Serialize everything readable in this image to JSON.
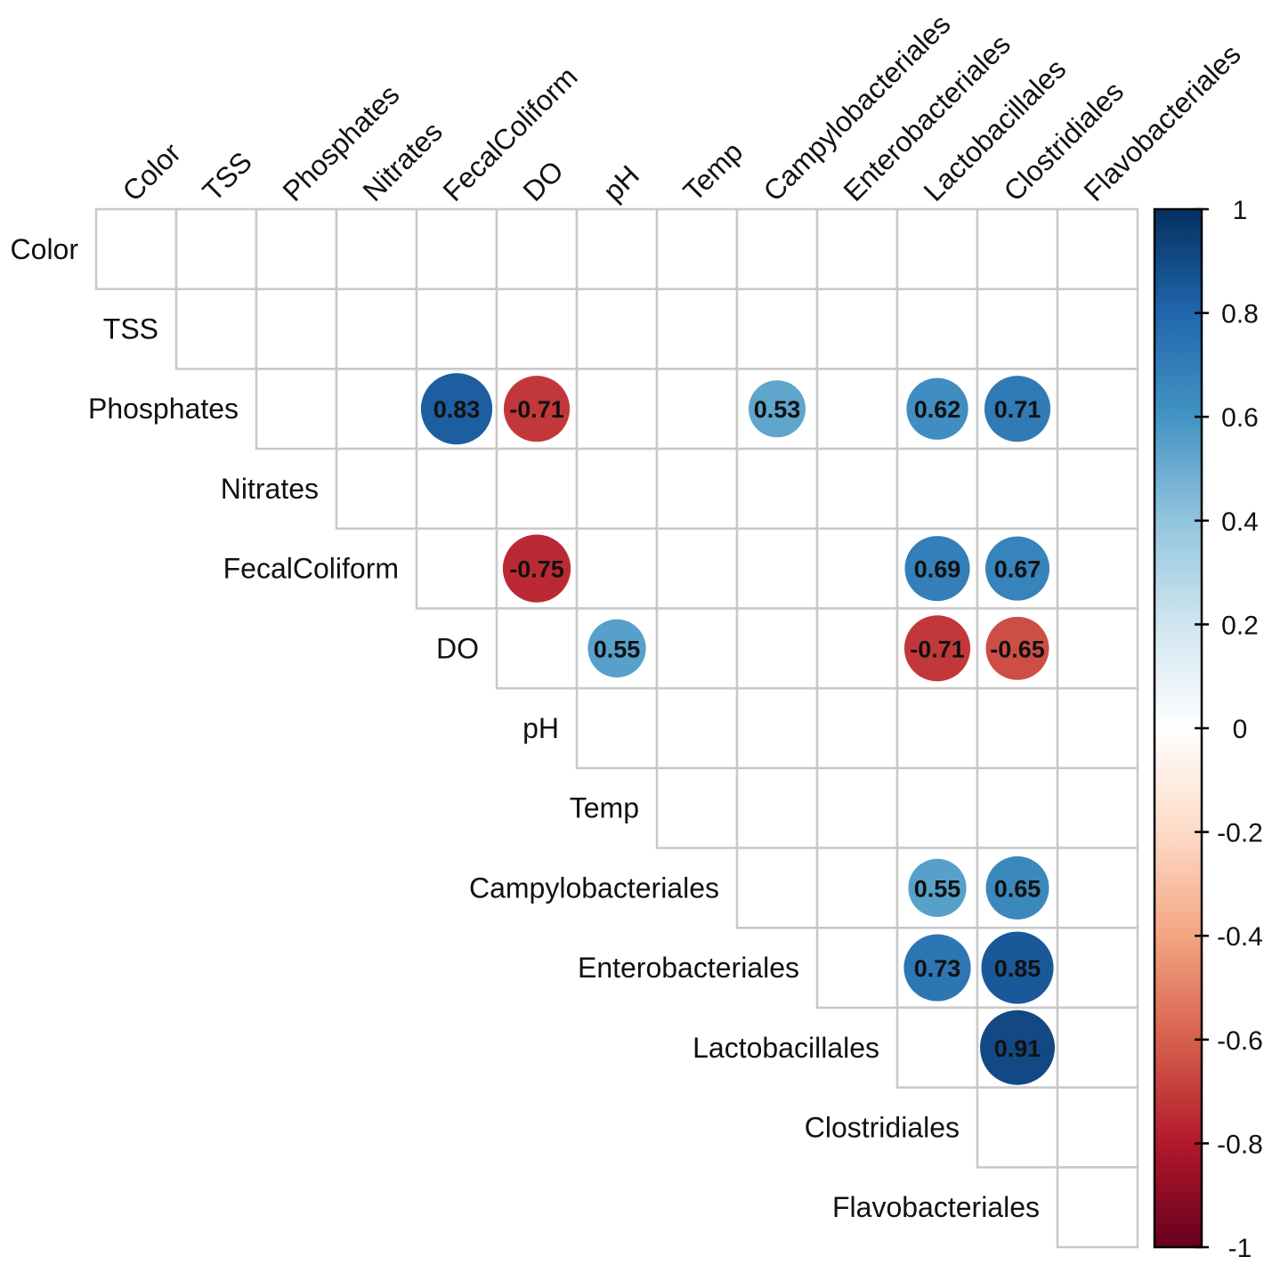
{
  "chart_data": {
    "type": "heatmap",
    "subtype": "correlation-circles-upper-triangle",
    "variables": [
      "Color",
      "TSS",
      "Phosphates",
      "Nitrates",
      "FecalColiform",
      "DO",
      "pH",
      "Temp",
      "Campylobacteriales",
      "Enterobacteriales",
      "Lactobacillales",
      "Clostridiales",
      "Flavobacteriales"
    ],
    "cells": [
      {
        "row": "Phosphates",
        "col": "FecalColiform",
        "value": 0.83
      },
      {
        "row": "Phosphates",
        "col": "DO",
        "value": -0.71
      },
      {
        "row": "Phosphates",
        "col": "Campylobacteriales",
        "value": 0.53
      },
      {
        "row": "Phosphates",
        "col": "Lactobacillales",
        "value": 0.62
      },
      {
        "row": "Phosphates",
        "col": "Clostridiales",
        "value": 0.71
      },
      {
        "row": "FecalColiform",
        "col": "DO",
        "value": -0.75
      },
      {
        "row": "FecalColiform",
        "col": "Lactobacillales",
        "value": 0.69
      },
      {
        "row": "FecalColiform",
        "col": "Clostridiales",
        "value": 0.67
      },
      {
        "row": "DO",
        "col": "pH",
        "value": 0.55
      },
      {
        "row": "DO",
        "col": "Lactobacillales",
        "value": -0.71
      },
      {
        "row": "DO",
        "col": "Clostridiales",
        "value": -0.65
      },
      {
        "row": "Campylobacteriales",
        "col": "Lactobacillales",
        "value": 0.55
      },
      {
        "row": "Campylobacteriales",
        "col": "Clostridiales",
        "value": 0.65
      },
      {
        "row": "Enterobacteriales",
        "col": "Lactobacillales",
        "value": 0.73
      },
      {
        "row": "Enterobacteriales",
        "col": "Clostridiales",
        "value": 0.85
      },
      {
        "row": "Lactobacillales",
        "col": "Clostridiales",
        "value": 0.91
      }
    ],
    "colorbar": {
      "range": [
        -1,
        1
      ],
      "ticks": [
        1,
        0.8,
        0.6,
        0.4,
        0.2,
        0,
        -0.2,
        -0.4,
        -0.6,
        -0.8,
        -1
      ],
      "tick_labels": [
        "1",
        "0.8",
        "0.6",
        "0.4",
        "0.2",
        "0",
        "-0.2",
        "-0.4",
        "-0.6",
        "-0.8",
        "-1"
      ],
      "palette": [
        "#67001F",
        "#B2182B",
        "#D6604D",
        "#F4A582",
        "#FDDBC7",
        "#FFFFFF",
        "#D1E5F0",
        "#92C5DE",
        "#4393C3",
        "#2166AC",
        "#053061"
      ]
    },
    "title": "",
    "xlabel": "",
    "ylabel": ""
  }
}
